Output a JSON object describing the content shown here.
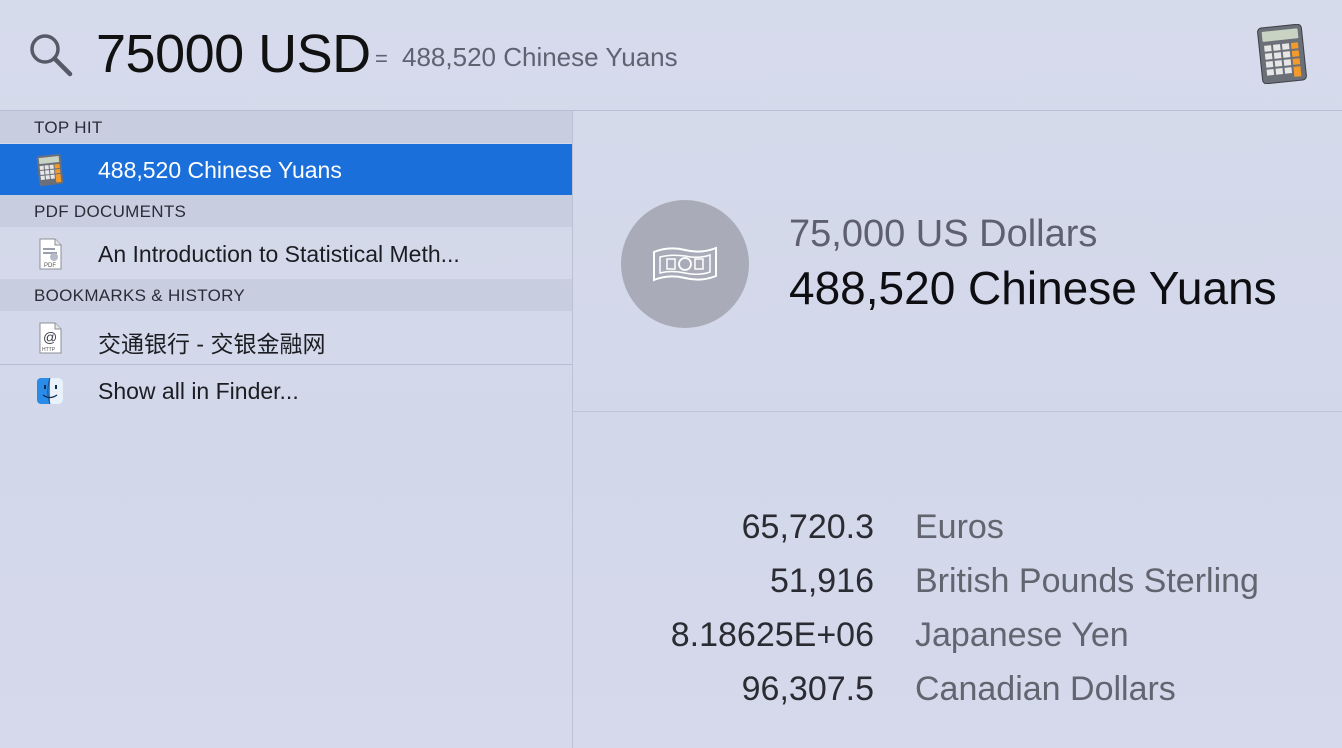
{
  "search": {
    "query": "75000 USD",
    "equals": "=",
    "inline_result": "488,520 Chinese Yuans",
    "app_icon": "calculator-icon"
  },
  "sections": [
    {
      "header": "TOP HIT",
      "items": [
        {
          "label": "488,520 Chinese Yuans",
          "icon": "calculator-icon",
          "selected": true
        }
      ]
    },
    {
      "header": "PDF DOCUMENTS",
      "items": [
        {
          "label": "An Introduction to Statistical Meth...",
          "icon": "pdf-document-icon",
          "selected": false
        }
      ]
    },
    {
      "header": "BOOKMARKS & HISTORY",
      "items": [
        {
          "label": "交通银行 - 交银金融网",
          "icon": "web-bookmark-icon",
          "selected": false
        }
      ]
    }
  ],
  "show_all": {
    "label": "Show all in Finder...",
    "icon": "finder-icon"
  },
  "detail": {
    "from_amount": "75,000 US Dollars",
    "to_amount": "488,520 Chinese Yuans",
    "badge_icon": "banknote-icon",
    "conversions": [
      {
        "value": "65,720.3",
        "currency": "Euros"
      },
      {
        "value": "51,916",
        "currency": "British Pounds Sterling"
      },
      {
        "value": "8.18625E+06",
        "currency": "Japanese Yen"
      },
      {
        "value": "96,307.5",
        "currency": "Canadian Dollars"
      }
    ]
  },
  "colors": {
    "selection": "#1a6fdb",
    "background": "#d3d8ea",
    "section_header": "#c8cde0"
  }
}
